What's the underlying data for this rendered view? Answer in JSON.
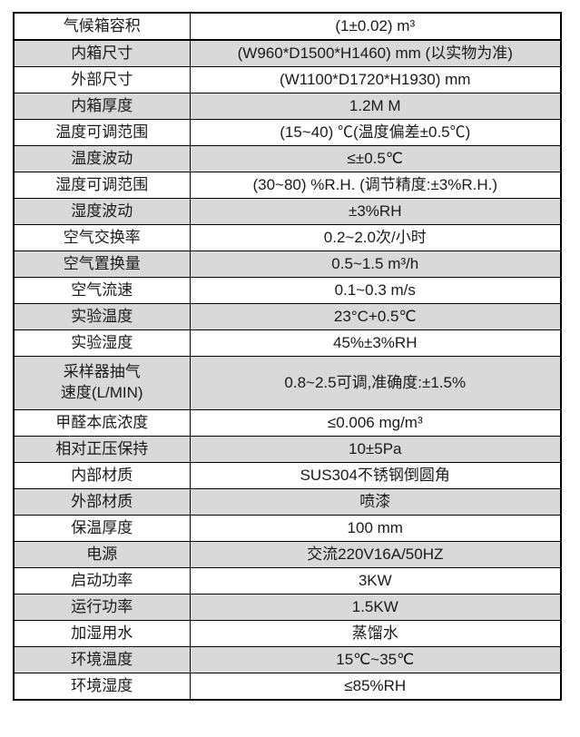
{
  "page": {
    "background_color": "#ffffff",
    "text_color": "#1a1a1a",
    "border_color": "#000000",
    "shaded_row_color": "#d9d9d9"
  },
  "table": {
    "name": "climate-chamber-specification-table",
    "columns": [
      "parameter",
      "value"
    ],
    "rows": [
      {
        "label": "气候箱容积",
        "value": "(1±0.02) m³",
        "shaded": false,
        "tall": false
      },
      {
        "label": "内箱尺寸",
        "value": "(W960*D1500*H1460) mm (以实物为准)",
        "shaded": true,
        "tall": false
      },
      {
        "label": "外部尺寸",
        "value": "(W1100*D1720*H1930) mm",
        "shaded": false,
        "tall": false
      },
      {
        "label": "内箱厚度",
        "value": "1.2M M",
        "shaded": true,
        "tall": false
      },
      {
        "label": "温度可调范围",
        "value": "(15~40) ℃(温度偏差±0.5℃)",
        "shaded": false,
        "tall": false
      },
      {
        "label": "温度波动",
        "value": "≤±0.5℃",
        "shaded": true,
        "tall": false
      },
      {
        "label": "湿度可调范围",
        "value": "(30~80) %R.H. (调节精度:±3%R.H.)",
        "shaded": false,
        "tall": false
      },
      {
        "label": "湿度波动",
        "value": "±3%RH",
        "shaded": true,
        "tall": false
      },
      {
        "label": "空气交换率",
        "value": "0.2~2.0次/小时",
        "shaded": false,
        "tall": false
      },
      {
        "label": "空气置换量",
        "value": "0.5~1.5 m³/h",
        "shaded": true,
        "tall": false
      },
      {
        "label": "空气流速",
        "value": "0.1~0.3 m/s",
        "shaded": false,
        "tall": false
      },
      {
        "label": "实验温度",
        "value": "23°C+0.5℃",
        "shaded": true,
        "tall": false
      },
      {
        "label": "实验湿度",
        "value": "45%±3%RH",
        "shaded": false,
        "tall": false
      },
      {
        "label": "采样器抽气\n速度(L/MIN)",
        "value": "0.8~2.5可调,准确度:±1.5%",
        "shaded": true,
        "tall": true
      },
      {
        "label": "甲醛本底浓度",
        "value": "≤0.006 mg/m³",
        "shaded": false,
        "tall": false
      },
      {
        "label": "相对正压保持",
        "value": "10±5Pa",
        "shaded": true,
        "tall": false
      },
      {
        "label": "内部材质",
        "value": "SUS304不锈钢倒圆角",
        "shaded": false,
        "tall": false
      },
      {
        "label": "外部材质",
        "value": "喷漆",
        "shaded": true,
        "tall": false
      },
      {
        "label": "保温厚度",
        "value": "100 mm",
        "shaded": false,
        "tall": false
      },
      {
        "label": "电源",
        "value": "交流220V16A/50HZ",
        "shaded": true,
        "tall": false
      },
      {
        "label": "启动功率",
        "value": "3KW",
        "shaded": false,
        "tall": false
      },
      {
        "label": "运行功率",
        "value": "1.5KW",
        "shaded": true,
        "tall": false
      },
      {
        "label": "加湿用水",
        "value": "蒸馏水",
        "shaded": false,
        "tall": false
      },
      {
        "label": "环境温度",
        "value": "15℃~35℃",
        "shaded": true,
        "tall": false
      },
      {
        "label": "环境湿度",
        "value": "≤85%RH",
        "shaded": false,
        "tall": false
      }
    ]
  }
}
